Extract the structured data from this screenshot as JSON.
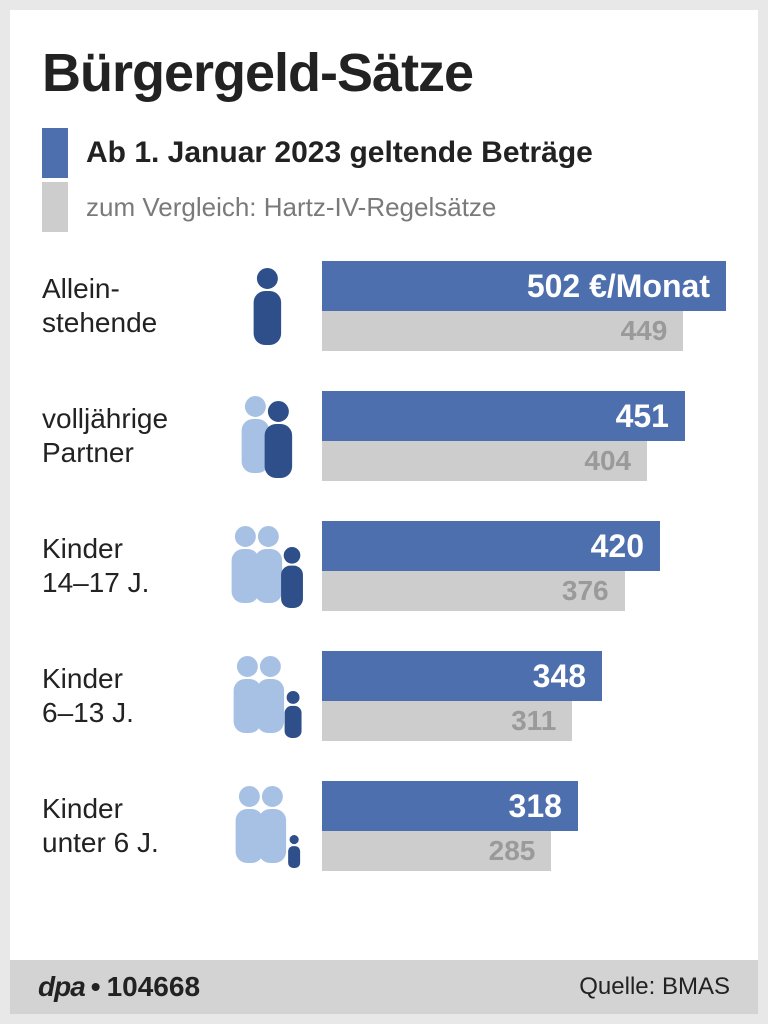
{
  "title": "Bürgergeld-Sätze",
  "legend": {
    "main": {
      "label": "Ab 1. Januar 2023 geltende Beträge",
      "color": "#4d6fae"
    },
    "comp": {
      "label": "zum Vergleich: Hartz-IV-Regelsätze",
      "color": "#cdcdcd"
    }
  },
  "chart": {
    "max_value": 502,
    "bar_main_color": "#4d6fae",
    "bar_main_text_color": "#ffffff",
    "bar_comp_color": "#cdcdcd",
    "bar_comp_text_color": "#9a9a9a",
    "icon_light_color": "#a7c1e4",
    "icon_dark_color": "#2e4f8a",
    "value_fontsize_main": 32,
    "value_fontsize_comp": 28,
    "rows": [
      {
        "label": "Allein-\nstehende",
        "value_main": 502,
        "value_main_label": "502 €/Monat",
        "value_comp": 449,
        "icon": "single"
      },
      {
        "label": "volljährige\nPartner",
        "value_main": 451,
        "value_main_label": "451",
        "value_comp": 404,
        "icon": "pair"
      },
      {
        "label": "Kinder\n14–17 J.",
        "value_main": 420,
        "value_main_label": "420",
        "value_comp": 376,
        "icon": "family-teen"
      },
      {
        "label": "Kinder\n6–13 J.",
        "value_main": 348,
        "value_main_label": "348",
        "value_comp": 311,
        "icon": "family-kid"
      },
      {
        "label": "Kinder\nunter 6 J.",
        "value_main": 318,
        "value_main_label": "318",
        "value_comp": 285,
        "icon": "family-toddler"
      }
    ]
  },
  "footer": {
    "brand": "dpa",
    "id": "104668",
    "source": "Quelle: BMAS"
  }
}
